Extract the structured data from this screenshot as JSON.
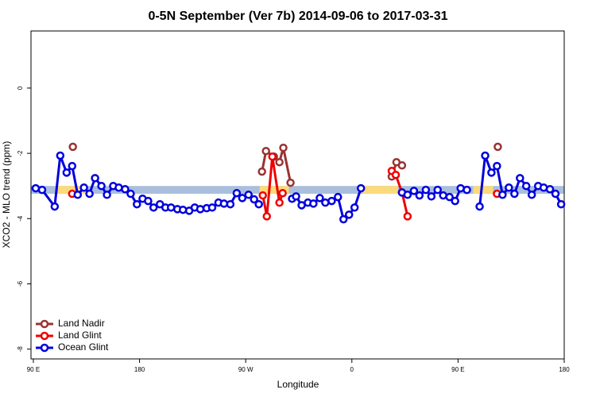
{
  "chart_data": {
    "type": "line",
    "title": "0-5N September (Ver 7b)   2014-09-06 to 2017-03-31",
    "xlabel": "Longitude",
    "ylabel": "XCO2 - MLO trend (ppm)",
    "xlim": [
      88,
      540
    ],
    "ylim": [
      -8.3,
      1.75
    ],
    "xticks": [
      {
        "value": 90,
        "label": "90 E"
      },
      180,
      {
        "value": 270,
        "label": "90 W"
      },
      {
        "value": 360,
        "label": "0"
      },
      {
        "value": 450,
        "label": "90 E"
      },
      {
        "value": 540,
        "label": "180"
      }
    ],
    "yticks": [
      -8,
      -6,
      -4,
      -2,
      0
    ],
    "legend": "bottom-left",
    "band": {
      "range": [
        -3.24,
        -3.0
      ],
      "color": "#a9bfdd",
      "highlight_color": "#fcd97a",
      "highlights": [
        [
          110.8,
          136.3
        ],
        [
          281.8,
          306.6
        ],
        [
          369,
          399
        ],
        [
          462.9,
          479.7
        ]
      ]
    },
    "series": [
      {
        "name": "Land Nadir",
        "color": "#993333",
        "x": [
          123.5,
          null,
          283.8,
          287.2,
          293.9,
          298.6,
          301.9,
          308.0,
          null,
          393.8,
          397.8,
          402.5,
          null,
          483.7
        ],
        "values": [
          -1.8,
          null,
          -2.56,
          -1.93,
          -2.1,
          -2.27,
          -1.83,
          -2.9,
          null,
          -2.71,
          -2.27,
          -2.37,
          null,
          -1.8
        ]
      },
      {
        "name": "Land Glint",
        "color": "#ee0000",
        "x": [
          122.9,
          null,
          284.5,
          287.9,
          292.6,
          298.6,
          301.3,
          null,
          393.8,
          397.2,
          402.5,
          407.2,
          null,
          483.0
        ],
        "values": [
          -3.24,
          null,
          -3.29,
          -3.93,
          -2.1,
          -3.51,
          -3.22,
          null,
          -2.54,
          -2.66,
          -3.2,
          -3.93,
          null,
          -3.24
        ]
      },
      {
        "name": "Ocean Glint",
        "color": "#0000dd",
        "x": [
          92.0,
          97.4,
          108.1,
          112.8,
          118.2,
          122.9,
          127.6,
          132.9,
          137.6,
          142.3,
          147.7,
          152.4,
          157.7,
          162.4,
          167.8,
          172.5,
          177.8,
          182.6,
          187.3,
          191.9,
          197.3,
          202.0,
          206.7,
          212.1,
          216.8,
          222.1,
          226.8,
          231.5,
          236.9,
          241.6,
          246.9,
          251.6,
          257.0,
          262.4,
          267.1,
          272.4,
          277.1,
          281.1,
          null,
          309.3,
          312.7,
          317.4,
          322.7,
          327.4,
          332.8,
          337.5,
          342.9,
          348.2,
          352.9,
          357.6,
          362.3,
          367.7,
          null,
          402.5,
          407.2,
          412.6,
          417.3,
          422.7,
          427.4,
          432.7,
          437.4,
          442.8,
          447.5,
          452.2,
          457.5,
          null,
          468.3,
          473.0,
          478.3,
          483.0,
          487.7,
          493.1,
          497.8,
          502.5,
          507.8,
          512.5,
          517.9,
          522.6,
          527.9,
          532.6,
          537.4
        ],
        "values": [
          -3.07,
          -3.12,
          -3.63,
          -2.07,
          -2.59,
          -2.39,
          -3.27,
          -3.05,
          -3.24,
          -2.76,
          -3.0,
          -3.27,
          -3.0,
          -3.05,
          -3.1,
          -3.24,
          -3.56,
          -3.39,
          -3.46,
          -3.66,
          -3.56,
          -3.66,
          -3.66,
          -3.71,
          -3.73,
          -3.76,
          -3.66,
          -3.71,
          -3.68,
          -3.66,
          -3.51,
          -3.54,
          -3.56,
          -3.22,
          -3.37,
          -3.27,
          -3.41,
          -3.56,
          null,
          -3.39,
          -3.32,
          -3.59,
          -3.51,
          -3.54,
          -3.37,
          -3.51,
          -3.46,
          -3.34,
          -4.02,
          -3.88,
          -3.66,
          -3.07,
          null,
          -3.2,
          -3.27,
          -3.15,
          -3.29,
          -3.12,
          -3.32,
          -3.12,
          -3.29,
          -3.34,
          -3.46,
          -3.07,
          -3.12,
          null,
          -3.63,
          -2.07,
          -2.59,
          -2.39,
          -3.27,
          -3.05,
          -3.24,
          -2.76,
          -3.0,
          -3.27,
          -3.0,
          -3.05,
          -3.1,
          -3.24,
          -3.56
        ]
      }
    ]
  }
}
